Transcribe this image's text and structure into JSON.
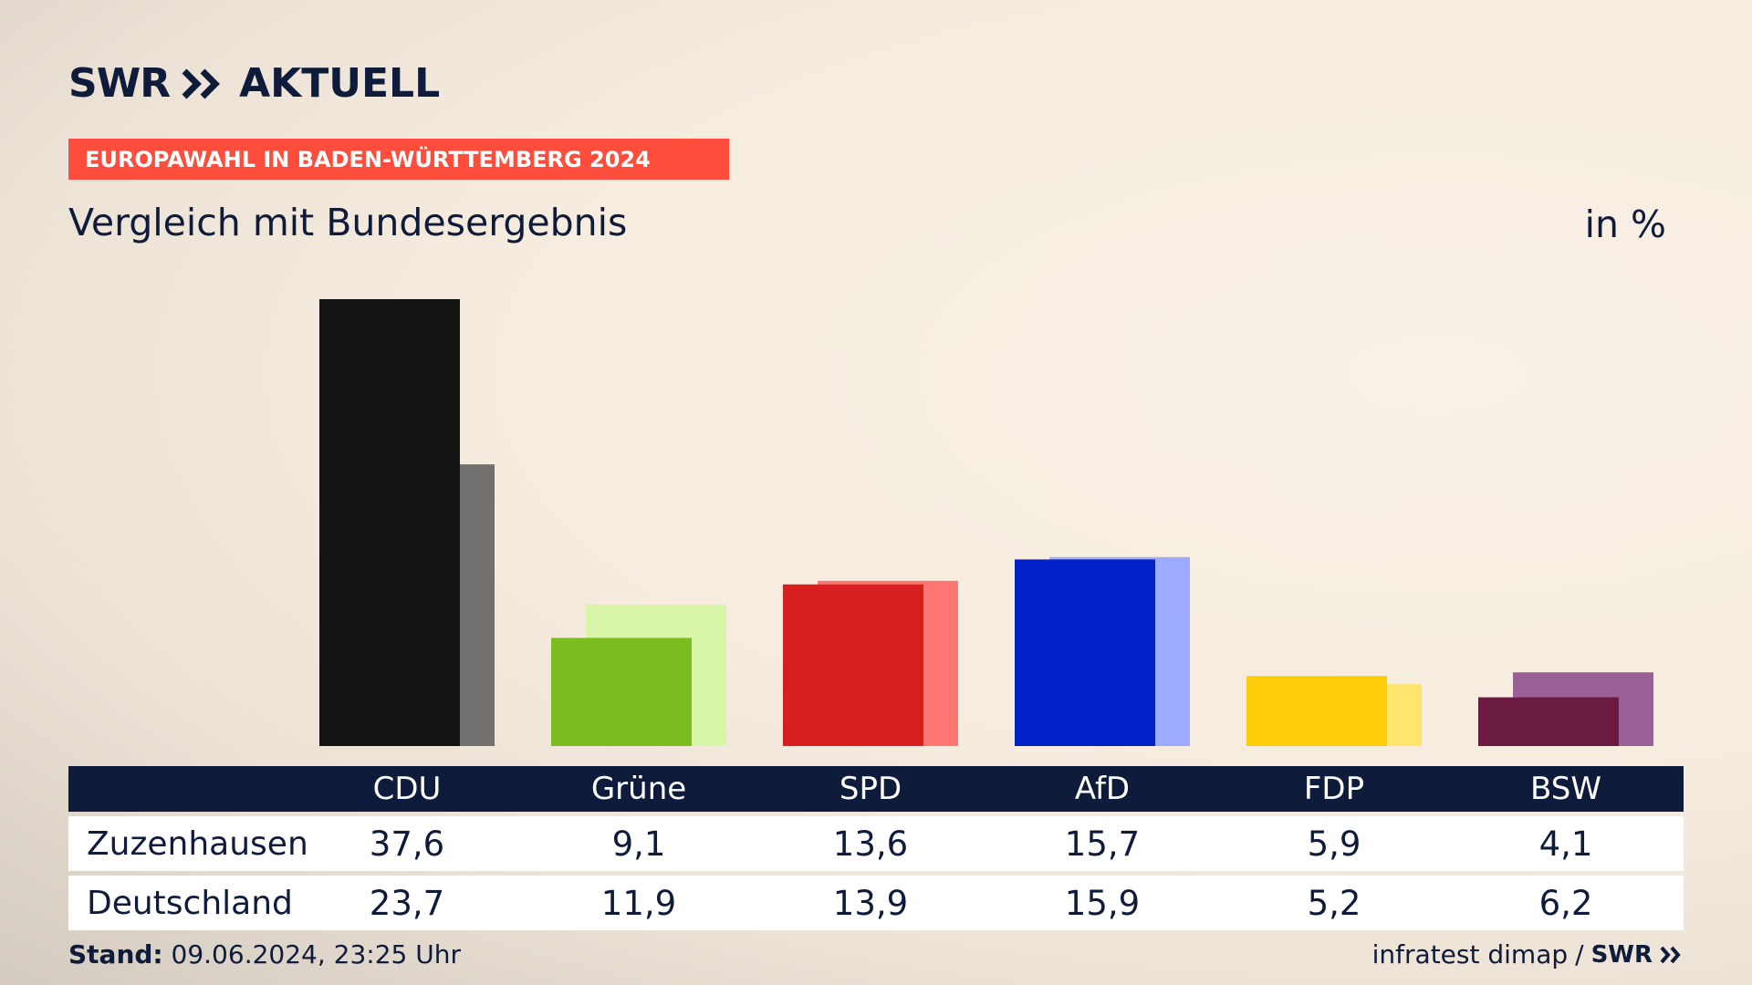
{
  "brand": {
    "logo_primary": "SWR",
    "logo_secondary": "AKTUELL"
  },
  "banner": {
    "text": "EUROPAWAHL IN BADEN-WÜRTTEMBERG 2024",
    "color": "#ff4d3d"
  },
  "subtitle": "Vergleich mit Bundesergebnis",
  "unit": "in %",
  "chart_data": {
    "type": "bar",
    "categories": [
      "CDU",
      "Grüne",
      "SPD",
      "AfD",
      "FDP",
      "BSW"
    ],
    "series": [
      {
        "name": "Zuzenhausen",
        "values": [
          37.6,
          9.1,
          13.6,
          15.7,
          5.9,
          4.1
        ],
        "colors": [
          "#141414",
          "#7abd1e",
          "#d71f20",
          "#0020c8",
          "#ffcd0a",
          "#6b1a40"
        ]
      },
      {
        "name": "Deutschland",
        "values": [
          23.7,
          11.9,
          13.9,
          15.9,
          5.2,
          6.2
        ],
        "colors": [
          "#727170",
          "#d8f5a8",
          "#ff7672",
          "#9eaaff",
          "#ffe46e",
          "#9b5f98"
        ]
      }
    ],
    "ylim": [
      0,
      37.6
    ],
    "grid": false,
    "legend": "table-below"
  },
  "table": {
    "rows": [
      {
        "label": "Zuzenhausen",
        "values": [
          "37,6",
          "9,1",
          "13,6",
          "15,7",
          "5,9",
          "4,1"
        ]
      },
      {
        "label": "Deutschland",
        "values": [
          "23,7",
          "11,9",
          "13,9",
          "15,9",
          "5,2",
          "6,2"
        ]
      }
    ]
  },
  "footer": {
    "stand_label": "Stand:",
    "stand_value": "09.06.2024, 23:25 Uhr",
    "source": "infratest dimap",
    "separator": "/",
    "source_logo": "SWR"
  },
  "colors": {
    "navy": "#0e1b3a",
    "accent": "#ff4d3d"
  }
}
